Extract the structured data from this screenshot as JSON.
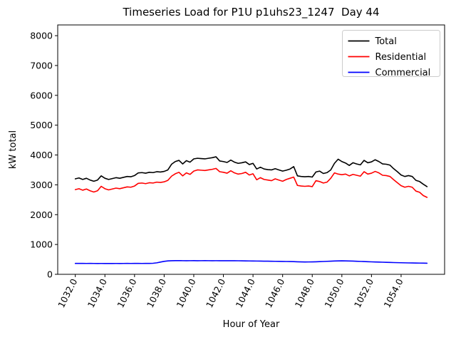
{
  "chart_data": {
    "type": "line",
    "title": "Timeseries Load for P1U p1uhs23_1247  Day 44",
    "xlabel": "Hour of Year",
    "ylabel": "kW total",
    "xlim": [
      1030.8125,
      1056.9375
    ],
    "ylim": [
      0,
      8360
    ],
    "grid": false,
    "legend_position": "upper right",
    "x_start": 1032.0,
    "x_step": 0.25,
    "xticks": {
      "values": [
        1032,
        1034,
        1036,
        1038,
        1040,
        1042,
        1044,
        1046,
        1048,
        1050,
        1052,
        1054
      ],
      "labels": [
        "1032.0",
        "1034.0",
        "1036.0",
        "1038.0",
        "1040.0",
        "1042.0",
        "1044.0",
        "1046.0",
        "1048.0",
        "1050.0",
        "1052.0",
        "1054.0"
      ]
    },
    "yticks": {
      "values": [
        0,
        1000,
        2000,
        3000,
        4000,
        5000,
        6000,
        7000,
        8000
      ],
      "labels": [
        "0",
        "1000",
        "2000",
        "3000",
        "4000",
        "5000",
        "6000",
        "7000",
        "8000"
      ]
    },
    "series": [
      {
        "name": "Total",
        "color": "#000000",
        "values": [
          3200,
          3230,
          3180,
          3220,
          3160,
          3120,
          3160,
          3300,
          3220,
          3180,
          3210,
          3240,
          3220,
          3250,
          3280,
          3270,
          3310,
          3400,
          3410,
          3390,
          3420,
          3410,
          3440,
          3430,
          3450,
          3500,
          3690,
          3780,
          3820,
          3700,
          3810,
          3760,
          3870,
          3890,
          3880,
          3870,
          3890,
          3910,
          3940,
          3800,
          3780,
          3750,
          3830,
          3760,
          3720,
          3740,
          3770,
          3680,
          3720,
          3530,
          3590,
          3530,
          3510,
          3500,
          3540,
          3500,
          3460,
          3490,
          3530,
          3610,
          3300,
          3280,
          3270,
          3280,
          3260,
          3430,
          3460,
          3380,
          3410,
          3500,
          3720,
          3860,
          3780,
          3730,
          3650,
          3740,
          3700,
          3670,
          3820,
          3740,
          3770,
          3840,
          3780,
          3700,
          3690,
          3660,
          3540,
          3440,
          3330,
          3280,
          3310,
          3280,
          3150,
          3110,
          3020,
          2940
        ]
      },
      {
        "name": "Residential",
        "color": "#ff0000",
        "values": [
          2840,
          2870,
          2820,
          2860,
          2800,
          2760,
          2800,
          2950,
          2870,
          2830,
          2860,
          2890,
          2870,
          2900,
          2930,
          2920,
          2960,
          3050,
          3060,
          3040,
          3070,
          3060,
          3090,
          3080,
          3100,
          3150,
          3290,
          3370,
          3420,
          3300,
          3400,
          3350,
          3460,
          3500,
          3490,
          3480,
          3500,
          3520,
          3550,
          3440,
          3420,
          3390,
          3470,
          3400,
          3360,
          3380,
          3420,
          3330,
          3370,
          3170,
          3240,
          3180,
          3160,
          3140,
          3200,
          3160,
          3120,
          3180,
          3220,
          3260,
          2980,
          2960,
          2950,
          2960,
          2940,
          3140,
          3110,
          3060,
          3090,
          3220,
          3400,
          3360,
          3340,
          3360,
          3300,
          3350,
          3320,
          3290,
          3440,
          3360,
          3390,
          3450,
          3400,
          3320,
          3310,
          3280,
          3170,
          3070,
          2970,
          2920,
          2950,
          2920,
          2790,
          2750,
          2640,
          2580
        ]
      },
      {
        "name": "Commercial",
        "color": "#0000ff",
        "values": [
          365,
          366,
          365,
          364,
          365,
          364,
          363,
          364,
          363,
          362,
          363,
          364,
          363,
          364,
          365,
          364,
          366,
          365,
          364,
          365,
          366,
          370,
          385,
          410,
          435,
          450,
          455,
          458,
          458,
          457,
          456,
          457,
          458,
          456,
          457,
          458,
          457,
          456,
          457,
          456,
          455,
          456,
          457,
          455,
          454,
          452,
          450,
          448,
          447,
          445,
          443,
          441,
          440,
          438,
          436,
          434,
          432,
          430,
          428,
          425,
          420,
          416,
          414,
          415,
          417,
          420,
          425,
          430,
          436,
          441,
          446,
          450,
          452,
          450,
          447,
          443,
          438,
          433,
          428,
          423,
          418,
          414,
          410,
          406,
          402,
          398,
          394,
          391,
          388,
          385,
          382,
          380,
          378,
          376,
          374,
          372
        ]
      }
    ]
  }
}
